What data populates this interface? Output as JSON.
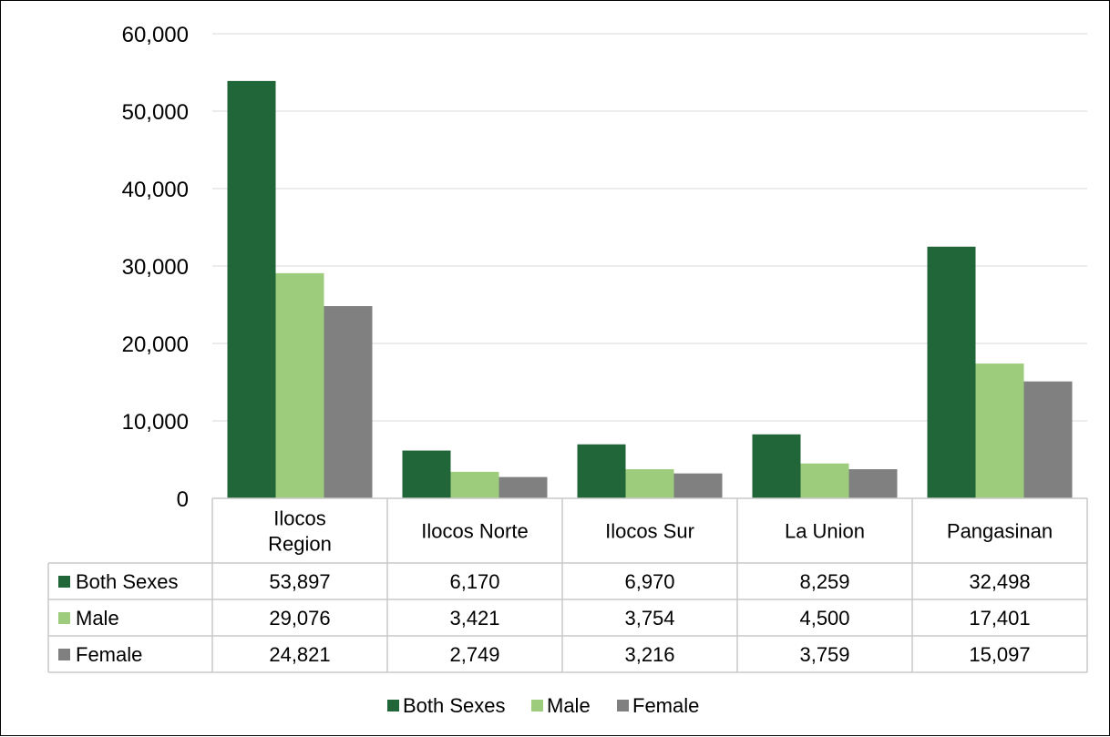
{
  "colors": {
    "both_sexes": "#216639",
    "male": "#9ccc7c",
    "female": "#808080",
    "grid": "#d9d9d9",
    "table_border": "#c8c8c8"
  },
  "chart_data": {
    "type": "bar",
    "title": "",
    "xlabel": "",
    "ylabel": "",
    "ylim": [
      0,
      60000
    ],
    "yticks": [
      0,
      10000,
      20000,
      30000,
      40000,
      50000,
      60000
    ],
    "ytick_labels": [
      "0",
      "10,000",
      "20,000",
      "30,000",
      "40,000",
      "50,000",
      "60,000"
    ],
    "grid": true,
    "legend_position": "bottom",
    "categories": [
      {
        "label_lines": [
          "Ilocos",
          "Region"
        ]
      },
      {
        "label_lines": [
          "Ilocos Norte"
        ]
      },
      {
        "label_lines": [
          "Ilocos Sur"
        ]
      },
      {
        "label_lines": [
          "La Union"
        ]
      },
      {
        "label_lines": [
          "Pangasinan"
        ]
      }
    ],
    "series": [
      {
        "name": "Both Sexes",
        "color": "#216639",
        "values": [
          53897,
          6170,
          6970,
          8259,
          32498
        ],
        "value_labels": [
          "53,897",
          "6,170",
          "6,970",
          "8,259",
          "32,498"
        ]
      },
      {
        "name": "Male",
        "color": "#9ccc7c",
        "values": [
          29076,
          3421,
          3754,
          4500,
          17401
        ],
        "value_labels": [
          "29,076",
          "3,421",
          "3,754",
          "4,500",
          "17,401"
        ]
      },
      {
        "name": "Female",
        "color": "#808080",
        "values": [
          24821,
          2749,
          3216,
          3759,
          15097
        ],
        "value_labels": [
          "24,821",
          "2,749",
          "3,216",
          "3,759",
          "15,097"
        ]
      }
    ]
  }
}
